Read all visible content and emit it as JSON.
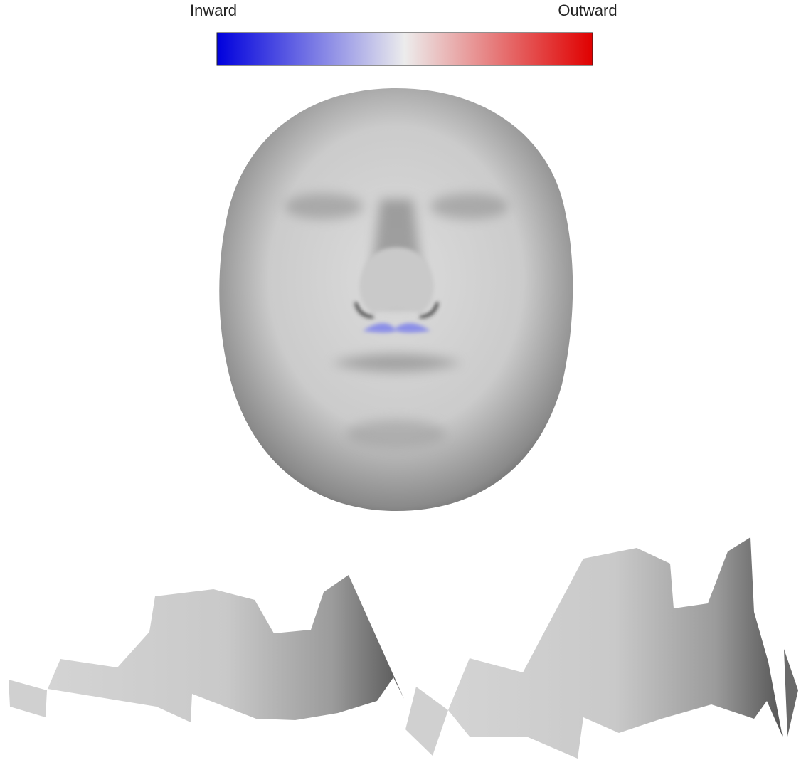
{
  "colorbar": {
    "left_label": "Inward",
    "right_label": "Outward"
  }
}
